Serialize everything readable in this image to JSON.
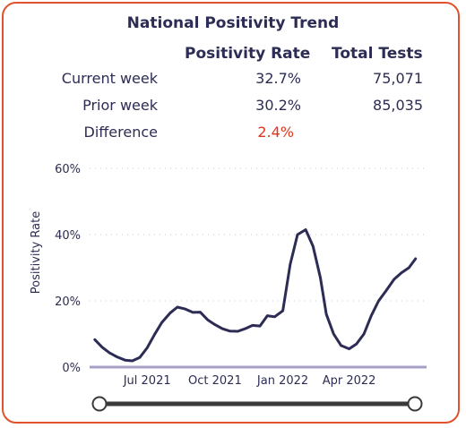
{
  "title": "National Positivity Trend",
  "table": {
    "headers": [
      "Positivity Rate",
      "Total Tests"
    ],
    "rows": [
      {
        "label": "Current week",
        "rate": "32.7%",
        "tests": "75,071"
      },
      {
        "label": "Prior week",
        "rate": "30.2%",
        "tests": "85,035"
      },
      {
        "label": "Difference",
        "rate": "2.4%",
        "tests": ""
      }
    ]
  },
  "colors": {
    "line": "#2c2c54",
    "accent": "#e0341e",
    "border": "#e0522b",
    "axis": "#a89fc4"
  },
  "chart_data": {
    "type": "line",
    "ylabel": "Positivity Rate",
    "xlabel": "",
    "yticks": [
      "0%",
      "20%",
      "40%",
      "60%"
    ],
    "ylim": [
      0,
      60
    ],
    "xlim": [
      "2021-04-14",
      "2022-07-15"
    ],
    "grid": true,
    "xticks": [
      {
        "label": "Jul 2021",
        "date": "2021-07-01"
      },
      {
        "label": "Oct 2021",
        "date": "2021-10-01"
      },
      {
        "label": "Jan 2022",
        "date": "2022-01-01"
      },
      {
        "label": "Apr 2022",
        "date": "2022-04-01"
      }
    ],
    "series": [
      {
        "x": [
          "2021-04-21",
          "2021-05-01",
          "2021-05-11",
          "2021-05-21",
          "2021-06-01",
          "2021-06-11",
          "2021-06-21",
          "2021-07-01",
          "2021-07-11",
          "2021-07-21",
          "2021-08-01",
          "2021-08-11",
          "2021-08-21",
          "2021-09-01",
          "2021-09-11",
          "2021-09-21",
          "2021-10-01",
          "2021-10-11",
          "2021-10-21",
          "2021-11-01",
          "2021-11-11",
          "2021-11-21",
          "2021-12-01",
          "2021-12-11",
          "2021-12-21",
          "2022-01-01",
          "2022-01-11",
          "2022-01-21",
          "2022-02-01",
          "2022-02-11",
          "2022-02-21",
          "2022-03-01",
          "2022-03-11",
          "2022-03-21",
          "2022-04-01",
          "2022-04-11",
          "2022-04-21",
          "2022-05-01",
          "2022-05-11",
          "2022-05-21",
          "2022-06-01",
          "2022-06-11",
          "2022-06-21",
          "2022-06-30"
        ],
        "values": [
          8.3,
          6.0,
          4.3,
          3.1,
          2.1,
          1.9,
          2.9,
          5.8,
          9.8,
          13.5,
          16.3,
          18.1,
          17.6,
          16.5,
          16.6,
          14.3,
          12.8,
          11.6,
          10.9,
          10.8,
          11.6,
          12.6,
          12.4,
          15.5,
          15.2,
          17.0,
          31.0,
          40.0,
          41.5,
          36.5,
          27.0,
          16.0,
          10.0,
          6.5,
          5.5,
          7.0,
          10.0,
          15.5,
          20.0,
          23.0,
          26.5,
          28.5,
          30.0,
          32.7
        ]
      }
    ]
  }
}
